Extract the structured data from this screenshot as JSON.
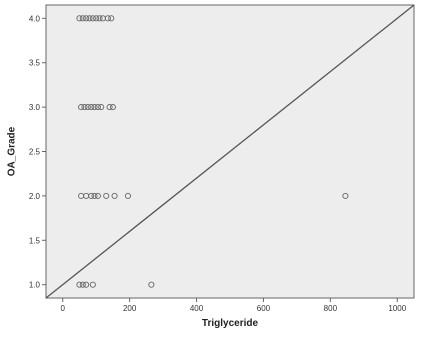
{
  "chart_data": {
    "type": "scatter",
    "title": "",
    "xlabel": "Triglyceride",
    "ylabel": "OA_Grade",
    "xlim": [
      -50,
      1050
    ],
    "ylim": [
      0.85,
      4.15
    ],
    "x_ticks": [
      0,
      200,
      400,
      600,
      800,
      1000
    ],
    "x_tick_labels": [
      "0",
      "200",
      "400",
      "600",
      "800",
      "1000"
    ],
    "y_ticks": [
      1.0,
      1.5,
      2.0,
      2.5,
      3.0,
      3.5,
      4.0
    ],
    "y_tick_labels": [
      "1.0",
      "1.5",
      "2.0",
      "2.5",
      "3.0",
      "3.5",
      "4.0"
    ],
    "grid": false,
    "legend": "none",
    "reference_line": {
      "from": [
        -50,
        0.85
      ],
      "to": [
        1050,
        4.15
      ]
    },
    "colors": {
      "plot_background": "#ededed",
      "marker": "#666666",
      "line": "#555555",
      "frame": "#666666"
    },
    "series": [
      {
        "points": [
          {
            "x": 50,
            "y": 1
          },
          {
            "x": 60,
            "y": 1
          },
          {
            "x": 70,
            "y": 1
          },
          {
            "x": 90,
            "y": 1
          },
          {
            "x": 265,
            "y": 1
          },
          {
            "x": 55,
            "y": 2
          },
          {
            "x": 70,
            "y": 2
          },
          {
            "x": 85,
            "y": 2
          },
          {
            "x": 95,
            "y": 2
          },
          {
            "x": 105,
            "y": 2
          },
          {
            "x": 130,
            "y": 2
          },
          {
            "x": 155,
            "y": 2
          },
          {
            "x": 195,
            "y": 2
          },
          {
            "x": 845,
            "y": 2
          },
          {
            "x": 55,
            "y": 3
          },
          {
            "x": 65,
            "y": 3
          },
          {
            "x": 75,
            "y": 3
          },
          {
            "x": 85,
            "y": 3
          },
          {
            "x": 95,
            "y": 3
          },
          {
            "x": 105,
            "y": 3
          },
          {
            "x": 115,
            "y": 3
          },
          {
            "x": 140,
            "y": 3
          },
          {
            "x": 150,
            "y": 3
          },
          {
            "x": 50,
            "y": 4
          },
          {
            "x": 60,
            "y": 4
          },
          {
            "x": 70,
            "y": 4
          },
          {
            "x": 80,
            "y": 4
          },
          {
            "x": 90,
            "y": 4
          },
          {
            "x": 100,
            "y": 4
          },
          {
            "x": 110,
            "y": 4
          },
          {
            "x": 120,
            "y": 4
          },
          {
            "x": 135,
            "y": 4
          },
          {
            "x": 145,
            "y": 4
          }
        ]
      }
    ]
  }
}
